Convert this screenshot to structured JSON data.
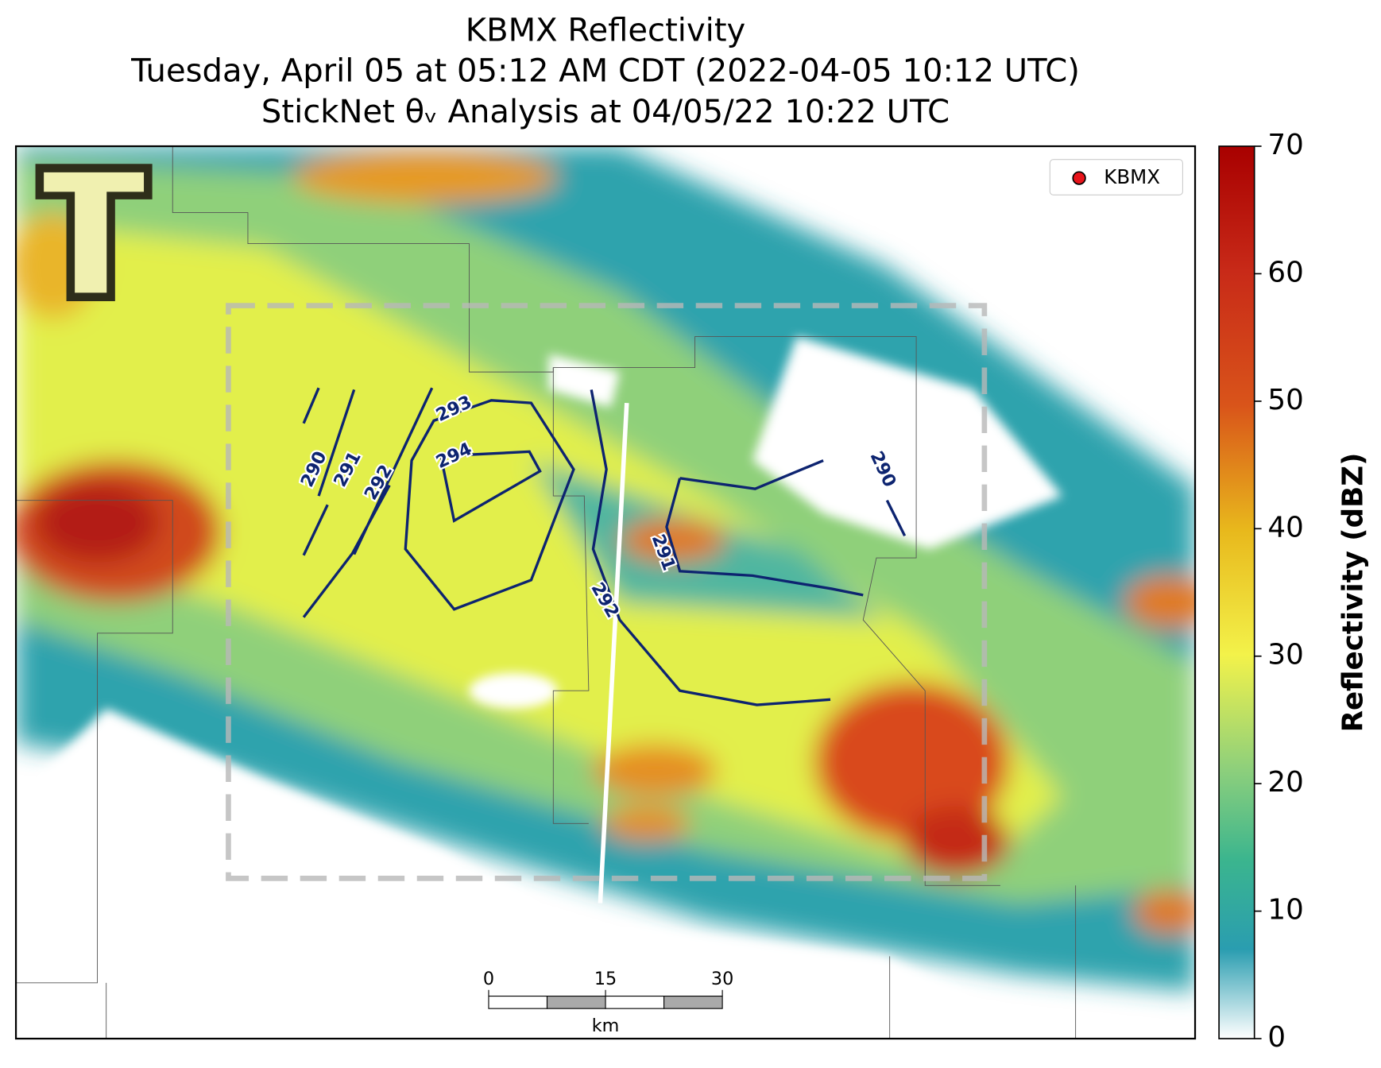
{
  "title": "KBMX Reflectivity",
  "subtitle": "Tuesday, April 05 at 05:12 AM CDT (2022-04-05 10:12 UTC)",
  "analysis": "StickNet θᵥ Analysis at 04/05/22 10:22 UTC",
  "legend": {
    "label": "KBMX",
    "color": "#e8141b"
  },
  "colorbar": {
    "label": "Reflectivity (dBZ)",
    "lim": [
      0,
      70
    ],
    "ticks": [
      0,
      10,
      20,
      30,
      40,
      50,
      60,
      70
    ]
  },
  "contours": [
    {
      "level": 290
    },
    {
      "level": 291
    },
    {
      "level": 292
    },
    {
      "level": 293
    },
    {
      "level": 294
    },
    {
      "level": 292
    },
    {
      "level": 291
    },
    {
      "level": 290
    }
  ],
  "scalebar": {
    "ticks": [
      0,
      15,
      30
    ],
    "unit": "km"
  }
}
